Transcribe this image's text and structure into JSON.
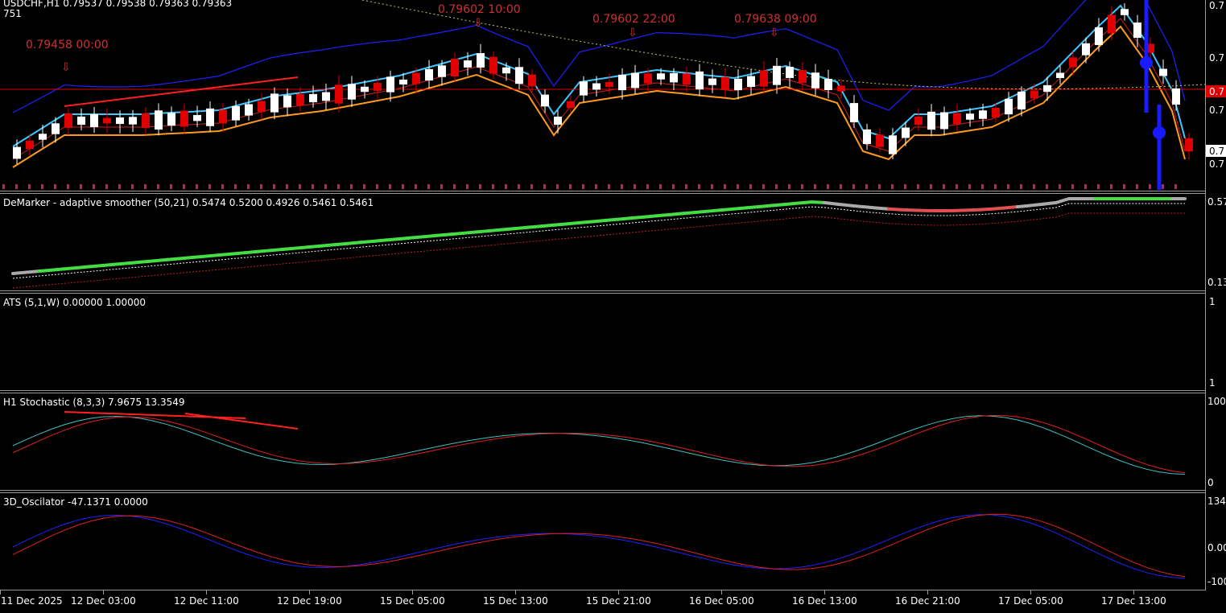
{
  "symbol_header": "USDCHF,H1  0.79537 0.79538 0.79363 0.79363",
  "symbol_sub": "751",
  "price_annotations": [
    {
      "text": "0.79458 00:00",
      "bar": 4
    },
    {
      "text": "0.79602 10:00",
      "bar": 36
    },
    {
      "text": "0.79602 22:00",
      "bar": 48
    },
    {
      "text": "0.79638 09:00",
      "bar": 59
    }
  ],
  "price_axis_labels": [
    "0.7",
    "0.7",
    "0.7",
    "0.7",
    "0.7",
    "0.7"
  ],
  "chart_data": [
    {
      "type": "candlestick",
      "panel": "price",
      "series": [
        {
          "name": "price"
        }
      ]
    },
    {
      "type": "line",
      "panel": "demarker",
      "title": "DeMarker - adaptive smoother (50,21) 0.5474 0.5200 0.4926 0.5461 0.5461",
      "ytick_labels": [
        "0.57",
        "0.13"
      ]
    },
    {
      "type": "line",
      "panel": "ats",
      "title": "ATS (5,1,W) 0.00000 1.00000",
      "ytick_labels": [
        "1",
        "1"
      ]
    },
    {
      "type": "line",
      "panel": "stochastic",
      "title": "H1 Stochastic (8,3,3) 7.9675 13.3549",
      "ytick_labels": [
        "100",
        "0"
      ],
      "ylim": [
        0,
        100
      ]
    },
    {
      "type": "line",
      "panel": "oscillator",
      "title": "3D_Oscilator -47.1371 0.0000",
      "ytick_labels": [
        "134",
        "0.00",
        "-100"
      ]
    }
  ],
  "time_axis_labels": [
    "11 Dec 2025",
    "12 Dec 03:00",
    "12 Dec 11:00",
    "12 Dec 19:00",
    "15 Dec 05:00",
    "15 Dec 13:00",
    "15 Dec 21:00",
    "16 Dec 05:00",
    "16 Dec 13:00",
    "16 Dec 21:00",
    "17 Dec 05:00",
    "17 Dec 13:00"
  ],
  "colors": {
    "bull": "#ffffff",
    "bear": "#e00000",
    "upper_band": "#2020ff",
    "cyan_ma": "#3ec6ff",
    "orange_ma": "#ff9a1e",
    "red_ma": "#d02020",
    "demarker_up": "#44dd44",
    "demarker_down": "#e05050",
    "demarker_flat": "#aaaaaa",
    "stoch_main": "#3fbfbf",
    "stoch_signal": "#e02020",
    "osc_main": "#2020ff",
    "osc_signal": "#e02020"
  }
}
